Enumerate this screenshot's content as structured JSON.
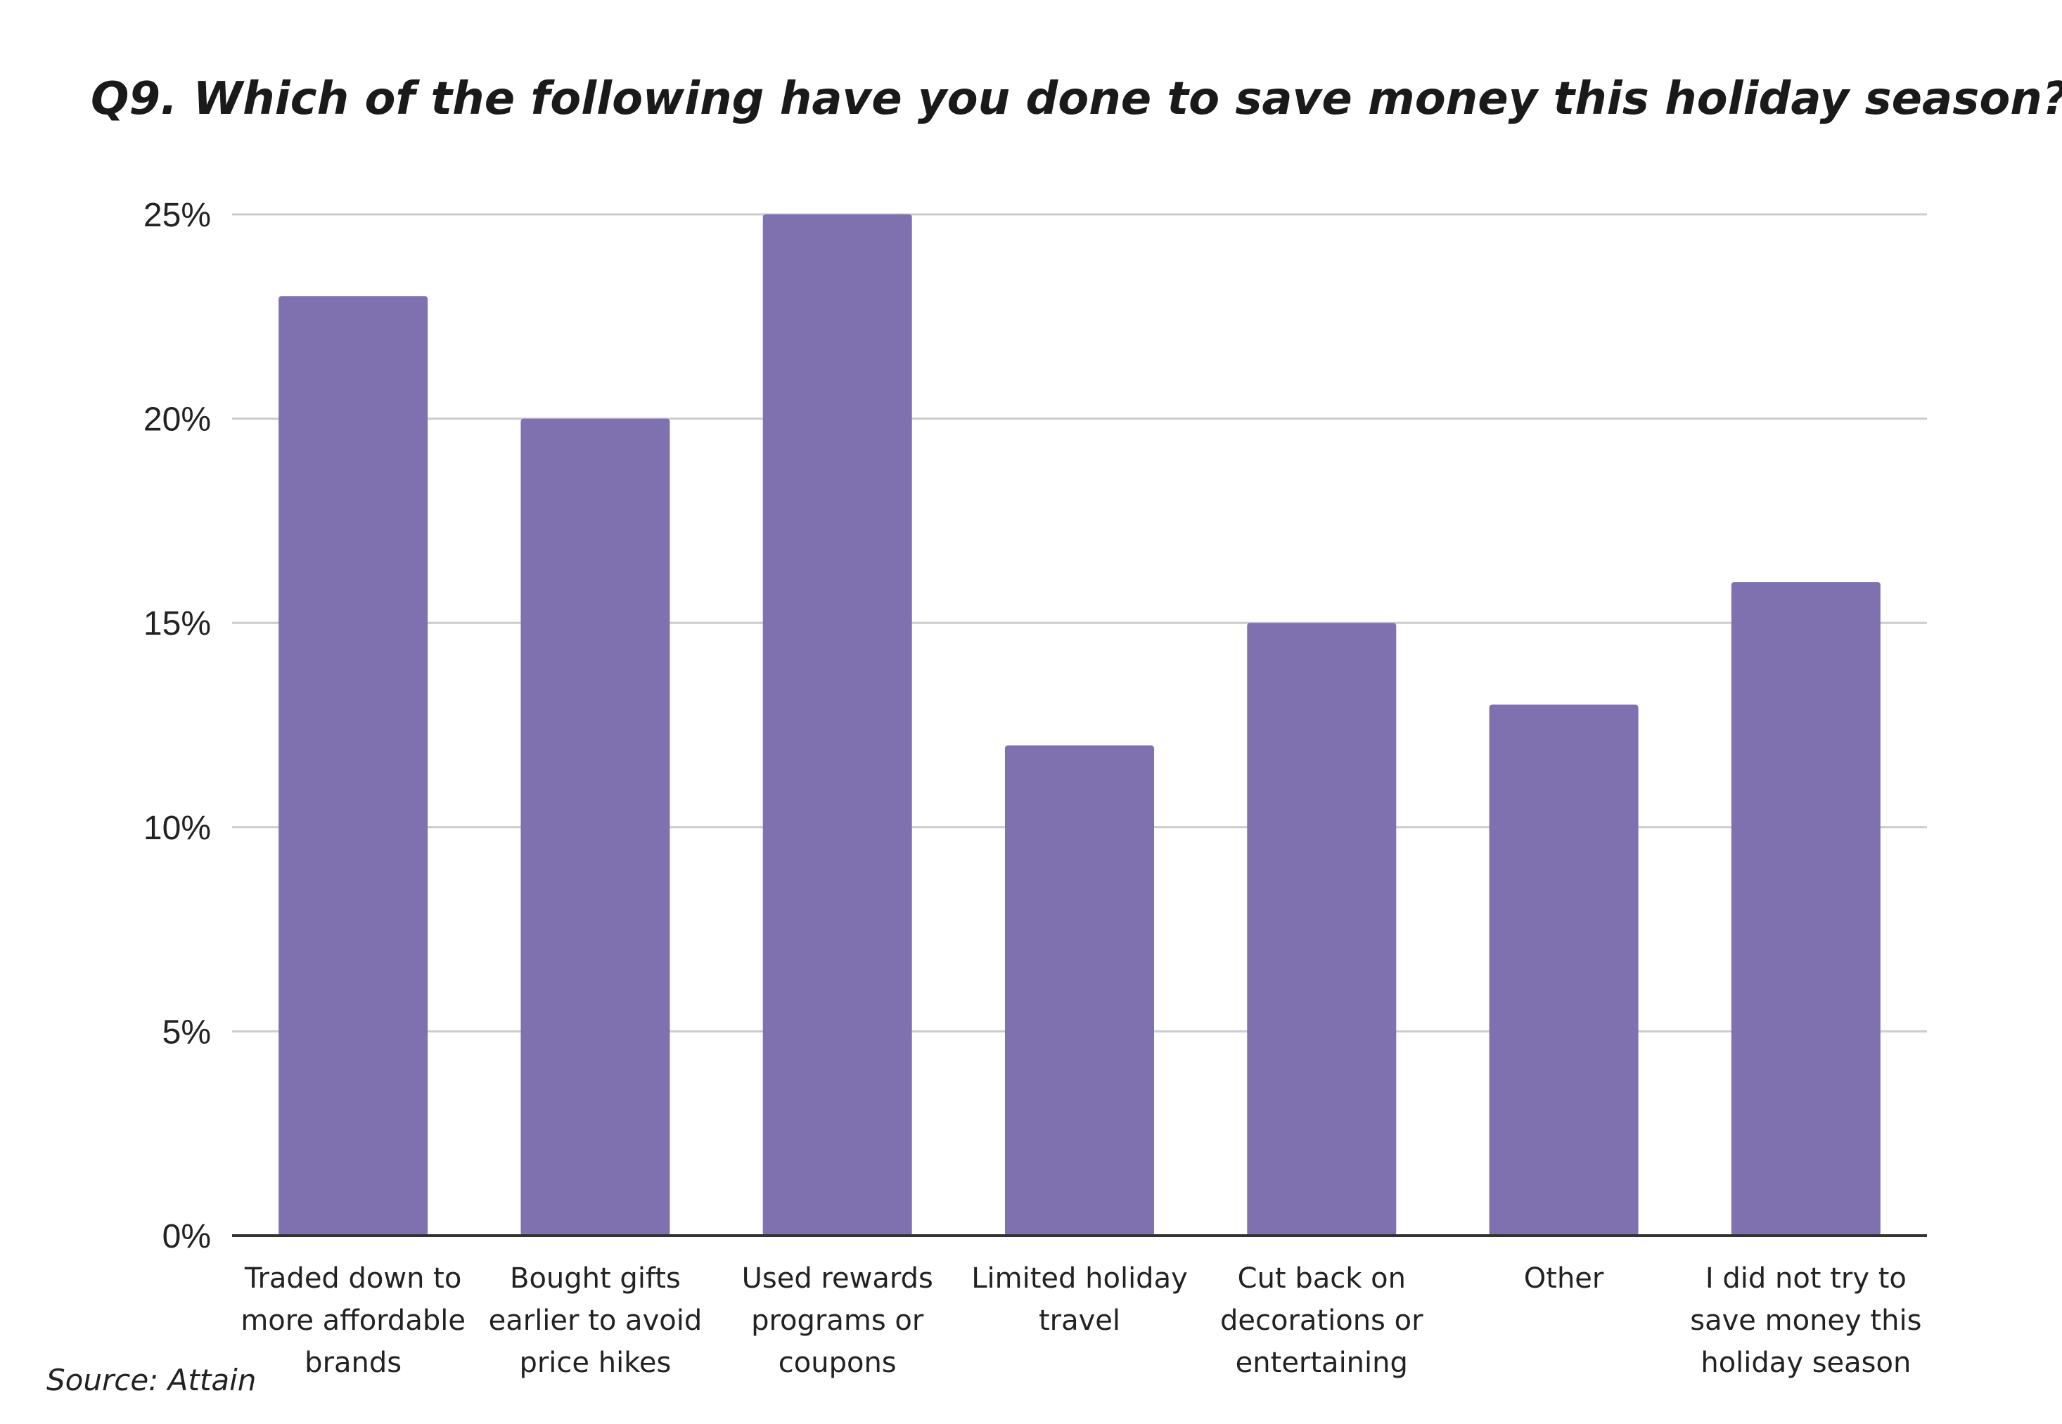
{
  "chart_data": {
    "type": "bar",
    "title": "Q9. Which of the following have you done to save money this holiday season?",
    "xlabel": "",
    "ylabel": "",
    "ylim": [
      0,
      25
    ],
    "y_ticks": [
      "0%",
      "5%",
      "10%",
      "15%",
      "20%",
      "25%"
    ],
    "y_tick_values": [
      0,
      5,
      10,
      15,
      20,
      25
    ],
    "grid": true,
    "categories": [
      [
        "Traded down to",
        "more affordable",
        "brands"
      ],
      [
        "Bought gifts",
        "earlier to avoid",
        "price hikes"
      ],
      [
        "Used rewards",
        "programs or",
        "coupons"
      ],
      [
        "Limited holiday",
        "travel"
      ],
      [
        "Cut back on",
        "decorations or",
        "entertaining"
      ],
      [
        "Other"
      ],
      [
        "I did not try to",
        "save money this",
        "holiday season"
      ]
    ],
    "values": [
      23,
      20,
      25,
      12,
      15,
      13,
      16
    ],
    "bar_color": "#7f71b0",
    "grid_color": "#cccccc",
    "axis_color": "#333333"
  },
  "source": "Source: Attain"
}
